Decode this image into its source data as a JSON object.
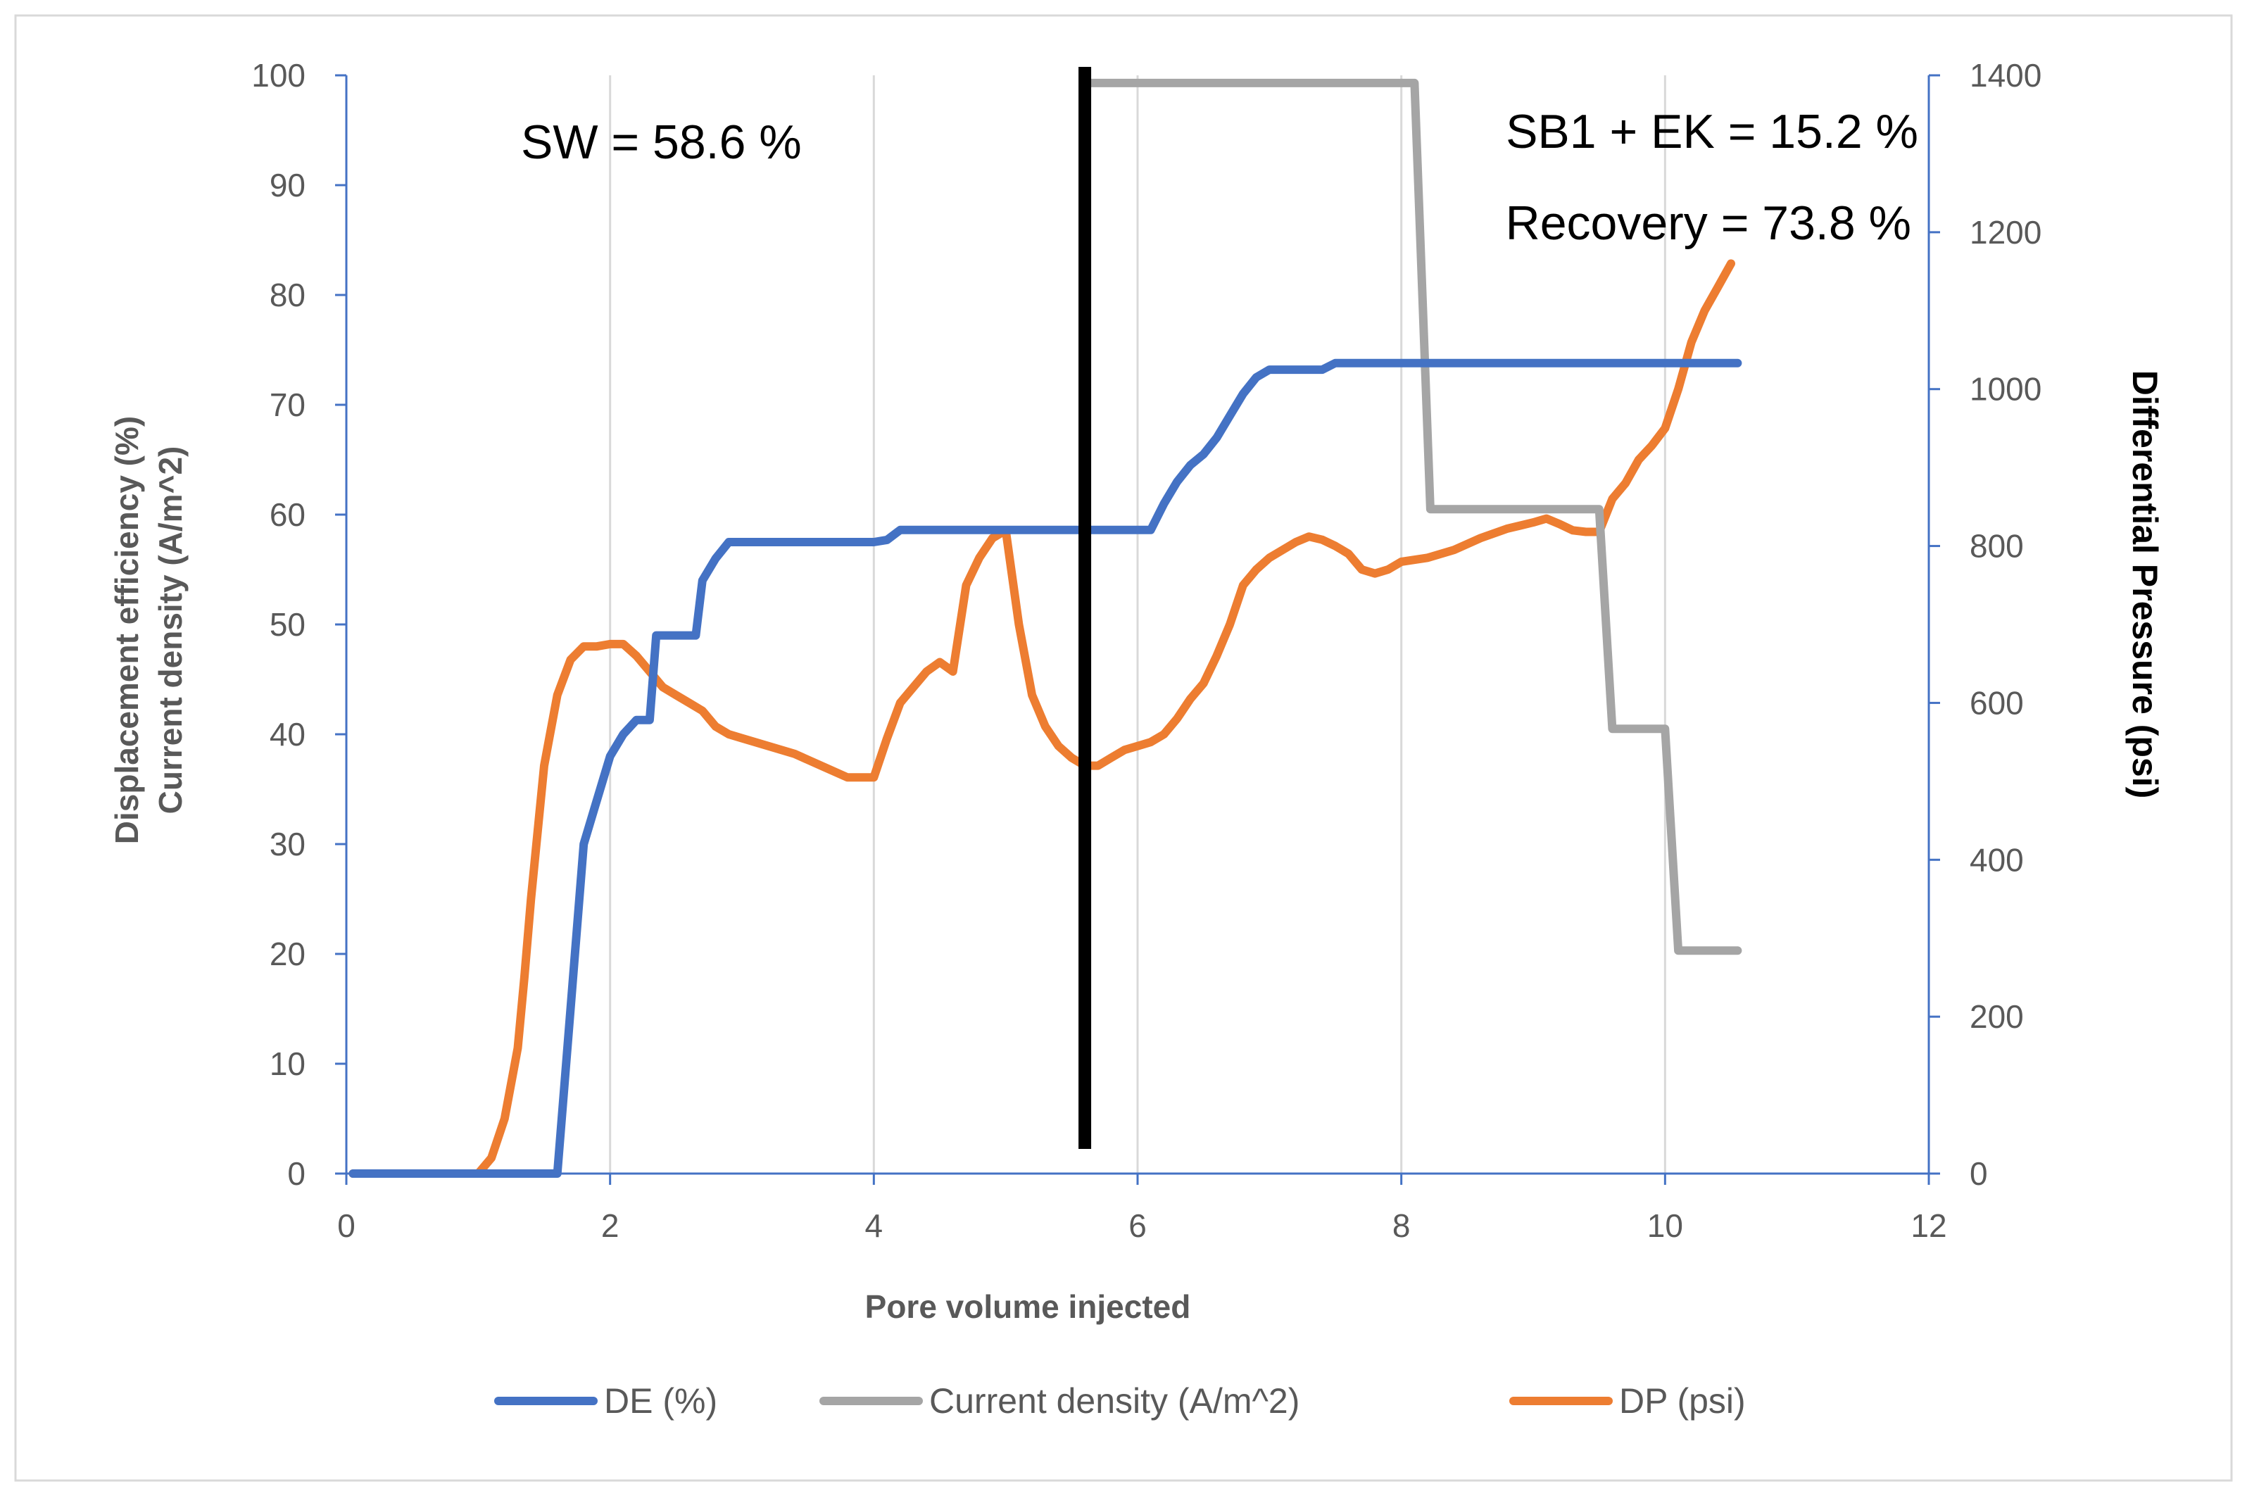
{
  "chart_data": {
    "type": "line",
    "xlabel": "Pore volume injected",
    "ylabel_left_line1": "Displacement efficiency (%)",
    "ylabel_left_line2": "Current density (A/m^2)",
    "ylabel_right": "Differential Pressure (psi)",
    "xlim": [
      0,
      12
    ],
    "ylim_left": [
      0,
      100
    ],
    "ylim_right": [
      0,
      1400
    ],
    "x_ticks": [
      "0",
      "2",
      "4",
      "6",
      "8",
      "10",
      "12"
    ],
    "y_left_ticks": [
      "0",
      "10",
      "20",
      "30",
      "40",
      "50",
      "60",
      "70",
      "80",
      "90",
      "100"
    ],
    "y_right_ticks": [
      "0",
      "200",
      "400",
      "600",
      "800",
      "1000",
      "1200",
      "1400"
    ],
    "annotations": {
      "sw": "SW = 58.6 %",
      "sb1": "SB1 + EK = 15.2 %",
      "recovery": "Recovery = 73.8 %"
    },
    "divider_x": 5.6,
    "series": [
      {
        "name": "DE (%)",
        "axis": "left",
        "color": "#4472C4",
        "points": [
          [
            0.05,
            0
          ],
          [
            1.6,
            0
          ],
          [
            1.7,
            15
          ],
          [
            1.8,
            30
          ],
          [
            1.9,
            34
          ],
          [
            2.0,
            38
          ],
          [
            2.1,
            40
          ],
          [
            2.2,
            41.3
          ],
          [
            2.3,
            41.3
          ],
          [
            2.35,
            49
          ],
          [
            2.65,
            49
          ],
          [
            2.7,
            54
          ],
          [
            2.8,
            56
          ],
          [
            2.9,
            57.5
          ],
          [
            4.0,
            57.5
          ],
          [
            4.1,
            57.7
          ],
          [
            4.2,
            58.6
          ],
          [
            6.1,
            58.6
          ],
          [
            6.2,
            61
          ],
          [
            6.3,
            63
          ],
          [
            6.4,
            64.5
          ],
          [
            6.5,
            65.5
          ],
          [
            6.6,
            67
          ],
          [
            6.7,
            69
          ],
          [
            6.8,
            71
          ],
          [
            6.9,
            72.5
          ],
          [
            7.0,
            73.2
          ],
          [
            7.4,
            73.2
          ],
          [
            7.5,
            73.8
          ],
          [
            10.55,
            73.8
          ]
        ]
      },
      {
        "name": "Current density (A/m^2)",
        "axis": "left",
        "color": "#A5A5A5",
        "points": [
          [
            5.65,
            99.3
          ],
          [
            8.1,
            99.3
          ],
          [
            8.22,
            60.5
          ],
          [
            9.5,
            60.5
          ],
          [
            9.6,
            40.5
          ],
          [
            10.0,
            40.5
          ],
          [
            10.1,
            20.3
          ],
          [
            10.55,
            20.3
          ]
        ]
      },
      {
        "name": "DP (psi)",
        "axis": "right",
        "color": "#ED7D31",
        "points": [
          [
            0.05,
            0
          ],
          [
            1.0,
            0
          ],
          [
            1.1,
            20
          ],
          [
            1.2,
            70
          ],
          [
            1.3,
            160
          ],
          [
            1.35,
            250
          ],
          [
            1.4,
            350
          ],
          [
            1.5,
            520
          ],
          [
            1.6,
            610
          ],
          [
            1.7,
            655
          ],
          [
            1.8,
            672
          ],
          [
            1.9,
            672
          ],
          [
            2.0,
            675
          ],
          [
            2.1,
            675
          ],
          [
            2.2,
            660
          ],
          [
            2.3,
            640
          ],
          [
            2.4,
            620
          ],
          [
            2.5,
            610
          ],
          [
            2.6,
            600
          ],
          [
            2.7,
            590
          ],
          [
            2.8,
            570
          ],
          [
            2.9,
            560
          ],
          [
            3.0,
            555
          ],
          [
            3.2,
            545
          ],
          [
            3.4,
            535
          ],
          [
            3.6,
            520
          ],
          [
            3.8,
            505
          ],
          [
            4.0,
            505
          ],
          [
            4.1,
            555
          ],
          [
            4.2,
            600
          ],
          [
            4.3,
            620
          ],
          [
            4.4,
            640
          ],
          [
            4.5,
            652
          ],
          [
            4.6,
            640
          ],
          [
            4.7,
            750
          ],
          [
            4.8,
            785
          ],
          [
            4.9,
            810
          ],
          [
            5.0,
            820
          ],
          [
            5.1,
            700
          ],
          [
            5.2,
            610
          ],
          [
            5.3,
            570
          ],
          [
            5.4,
            545
          ],
          [
            5.5,
            530
          ],
          [
            5.6,
            520
          ],
          [
            5.7,
            520
          ],
          [
            5.8,
            530
          ],
          [
            5.9,
            540
          ],
          [
            6.0,
            545
          ],
          [
            6.1,
            550
          ],
          [
            6.2,
            560
          ],
          [
            6.3,
            580
          ],
          [
            6.4,
            605
          ],
          [
            6.5,
            625
          ],
          [
            6.6,
            660
          ],
          [
            6.7,
            700
          ],
          [
            6.8,
            750
          ],
          [
            6.9,
            770
          ],
          [
            7.0,
            785
          ],
          [
            7.1,
            795
          ],
          [
            7.2,
            805
          ],
          [
            7.3,
            812
          ],
          [
            7.4,
            808
          ],
          [
            7.5,
            800
          ],
          [
            7.6,
            790
          ],
          [
            7.7,
            770
          ],
          [
            7.8,
            765
          ],
          [
            7.9,
            770
          ],
          [
            8.0,
            780
          ],
          [
            8.2,
            785
          ],
          [
            8.4,
            795
          ],
          [
            8.6,
            810
          ],
          [
            8.8,
            822
          ],
          [
            9.0,
            830
          ],
          [
            9.1,
            835
          ],
          [
            9.2,
            828
          ],
          [
            9.3,
            820
          ],
          [
            9.4,
            818
          ],
          [
            9.5,
            818
          ],
          [
            9.6,
            860
          ],
          [
            9.7,
            880
          ],
          [
            9.8,
            910
          ],
          [
            9.9,
            928
          ],
          [
            10.0,
            950
          ],
          [
            10.1,
            1000
          ],
          [
            10.2,
            1060
          ],
          [
            10.3,
            1100
          ],
          [
            10.4,
            1130
          ],
          [
            10.5,
            1160
          ]
        ]
      }
    ]
  }
}
